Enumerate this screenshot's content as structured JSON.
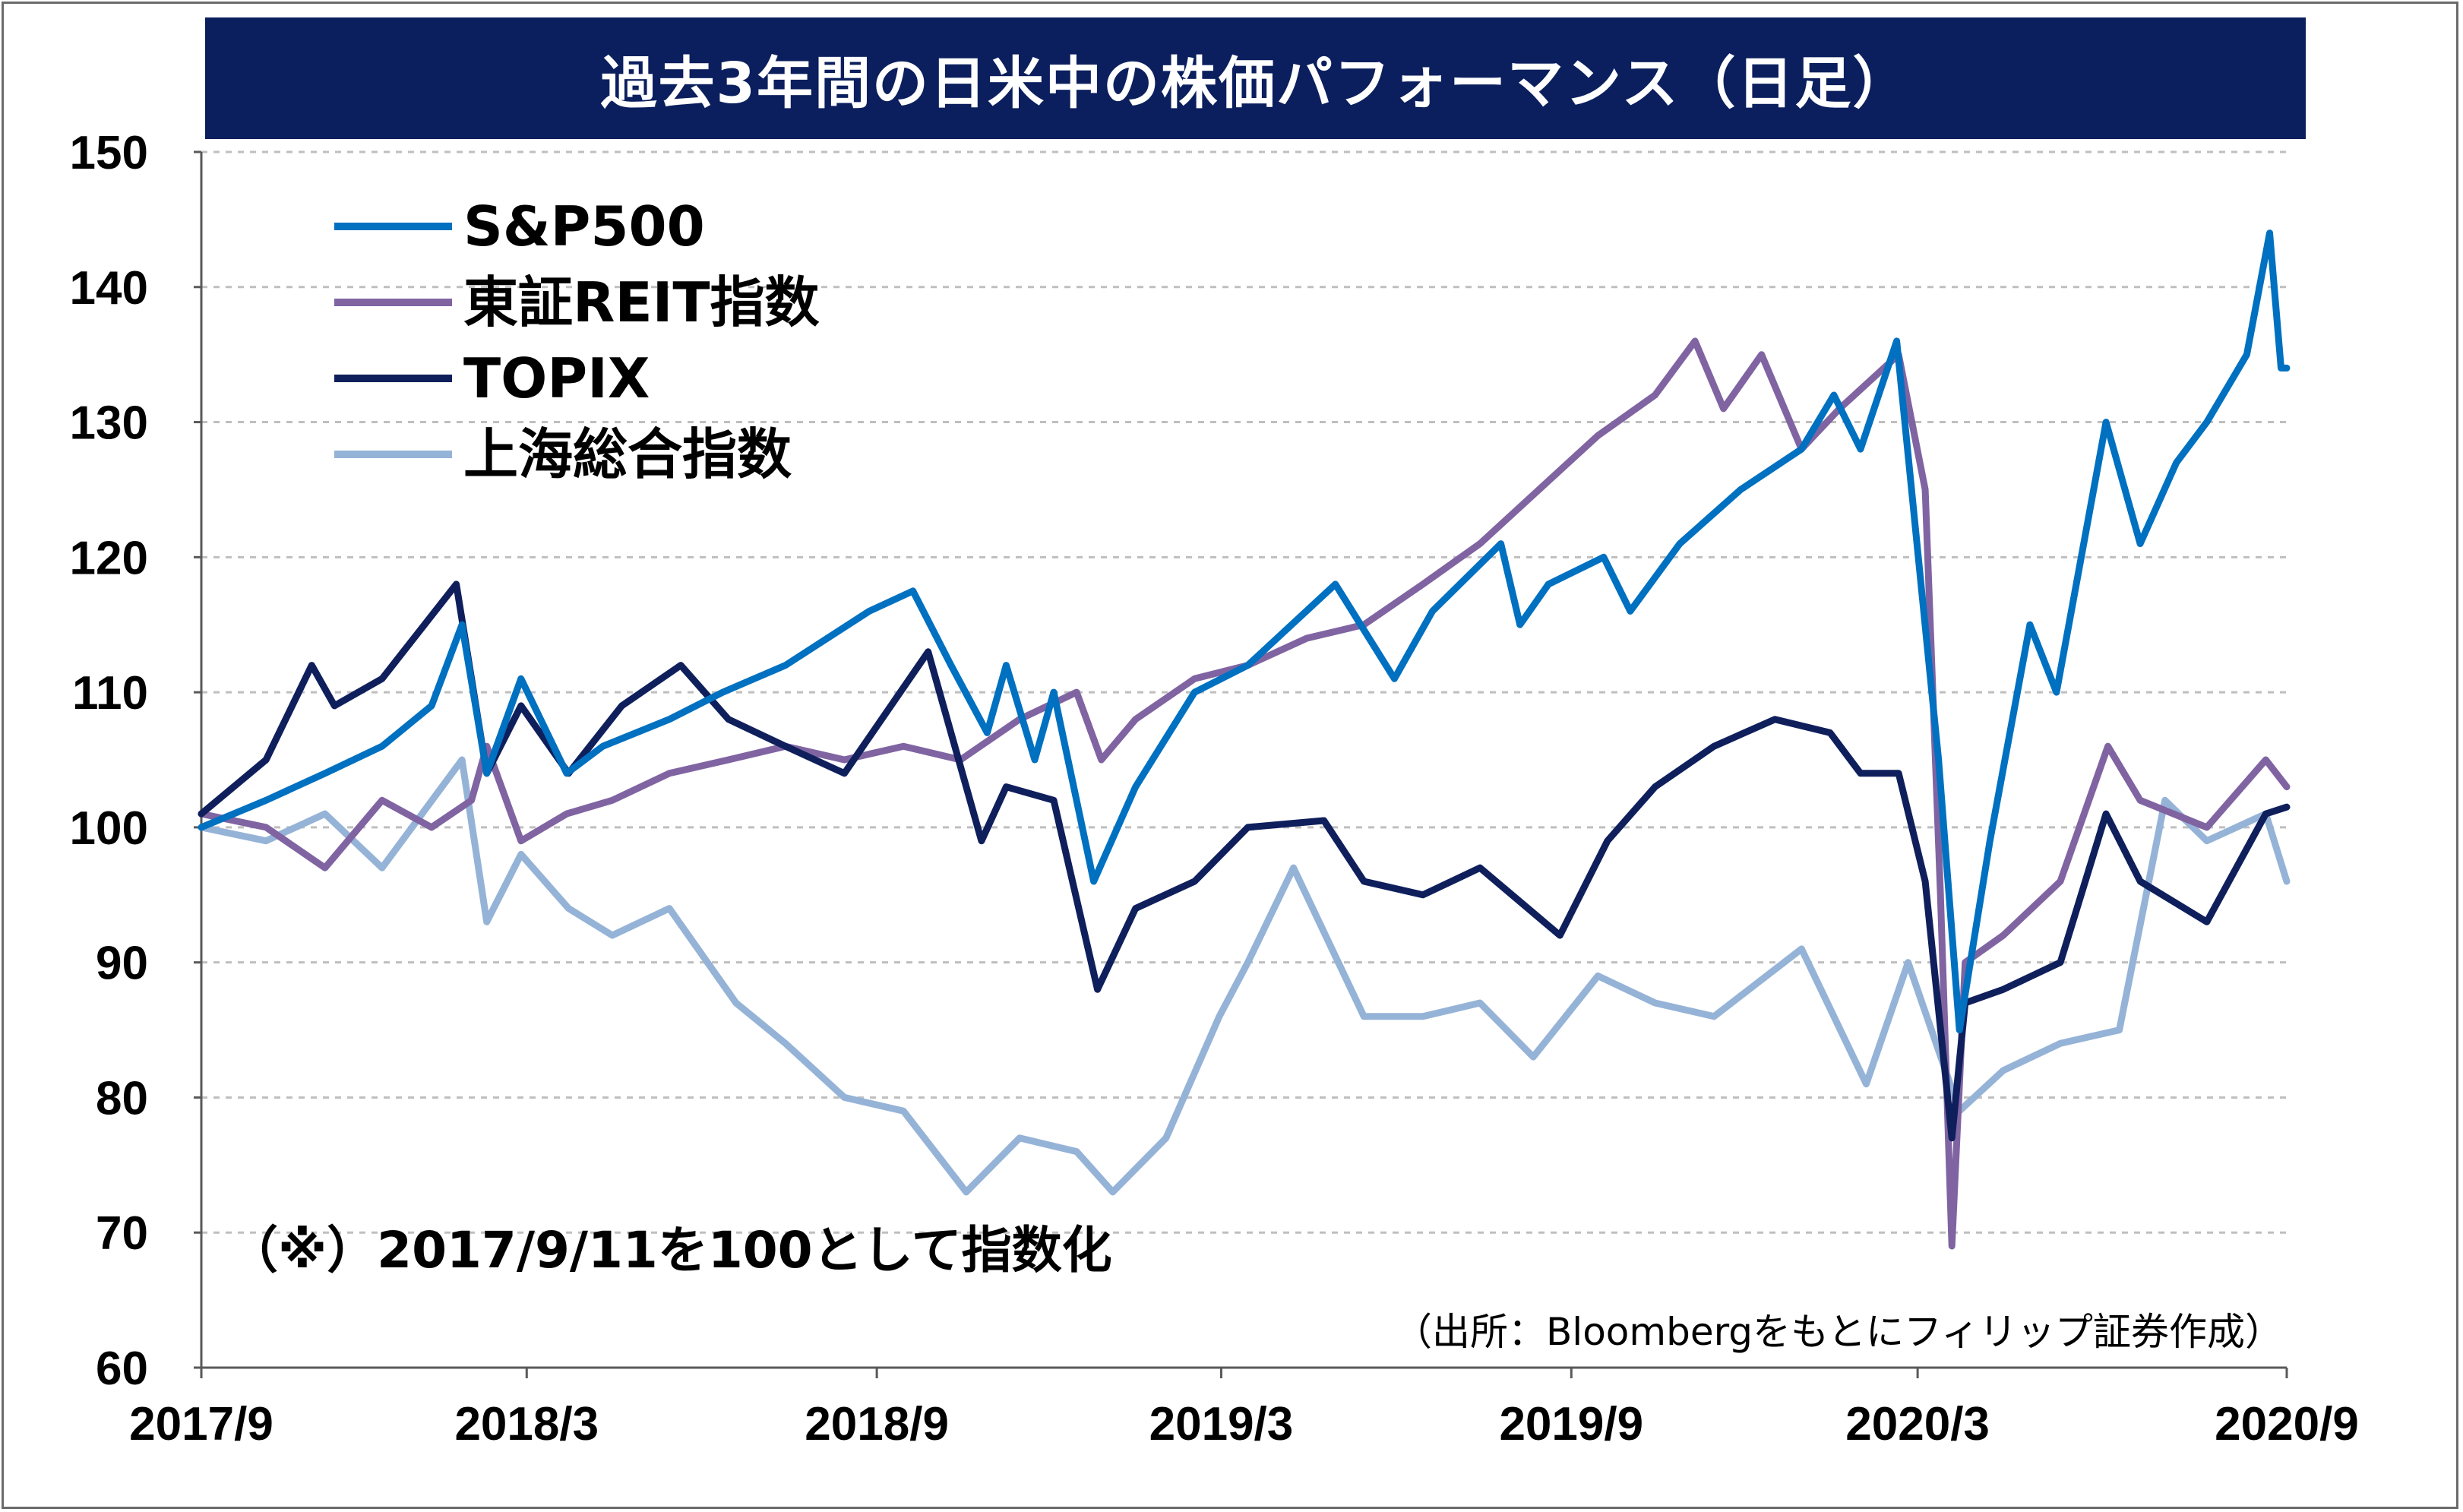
{
  "chart_data": {
    "type": "line",
    "title": "過去3年間の日米中の株価パフォーマンス（日足）",
    "note": "（※）2017/9/11を100として指数化",
    "source": "（出所：Bloombergをもとにフィリップ証券作成）",
    "ylim": [
      60,
      150
    ],
    "y_ticks": [
      "150",
      "140",
      "130",
      "120",
      "110",
      "100",
      "90",
      "80",
      "70",
      "60"
    ],
    "x_ticks": [
      "2017/9",
      "2018/3",
      "2018/9",
      "2019/3",
      "2019/9",
      "2020/3",
      "2020/9"
    ],
    "xlim": [
      "2017-09-11",
      "2020-09-11"
    ],
    "grid": "horizontal dashed",
    "legend_position": "top-left",
    "series": [
      {
        "name": "S&P500",
        "color": "#0070c0",
        "points": [
          [
            "2017-09-11",
            100
          ],
          [
            "2017-10-15",
            102
          ],
          [
            "2017-11-15",
            104
          ],
          [
            "2017-12-15",
            106
          ],
          [
            "2018-01-10",
            109
          ],
          [
            "2018-01-26",
            115
          ],
          [
            "2018-02-08",
            104
          ],
          [
            "2018-02-26",
            111
          ],
          [
            "2018-03-22",
            104
          ],
          [
            "2018-04-10",
            106
          ],
          [
            "2018-05-15",
            108
          ],
          [
            "2018-06-12",
            110
          ],
          [
            "2018-07-15",
            112
          ],
          [
            "2018-08-28",
            116
          ],
          [
            "2018-09-20",
            117.5
          ],
          [
            "2018-10-10",
            112
          ],
          [
            "2018-10-29",
            107
          ],
          [
            "2018-11-08",
            112
          ],
          [
            "2018-11-23",
            105
          ],
          [
            "2018-12-03",
            110
          ],
          [
            "2018-12-24",
            96
          ],
          [
            "2019-01-15",
            103
          ],
          [
            "2019-02-15",
            110
          ],
          [
            "2019-03-15",
            112
          ],
          [
            "2019-04-30",
            118
          ],
          [
            "2019-05-31",
            111
          ],
          [
            "2019-06-20",
            116
          ],
          [
            "2019-07-26",
            121
          ],
          [
            "2019-08-05",
            115
          ],
          [
            "2019-08-20",
            118
          ],
          [
            "2019-09-18",
            120
          ],
          [
            "2019-10-02",
            116
          ],
          [
            "2019-10-28",
            121
          ],
          [
            "2019-11-29",
            125
          ],
          [
            "2019-12-31",
            128
          ],
          [
            "2020-01-17",
            132
          ],
          [
            "2020-01-31",
            128
          ],
          [
            "2020-02-19",
            136
          ],
          [
            "2020-03-12",
            105
          ],
          [
            "2020-03-23",
            85
          ],
          [
            "2020-04-08",
            99
          ],
          [
            "2020-04-29",
            115
          ],
          [
            "2020-05-13",
            110
          ],
          [
            "2020-06-08",
            130
          ],
          [
            "2020-06-26",
            121
          ],
          [
            "2020-07-15",
            127
          ],
          [
            "2020-07-31",
            130
          ],
          [
            "2020-08-21",
            135
          ],
          [
            "2020-09-02",
            144
          ],
          [
            "2020-09-08",
            134
          ],
          [
            "2020-09-11",
            134
          ]
        ]
      },
      {
        "name": "東証REIT指数",
        "color": "#8064a2",
        "points": [
          [
            "2017-09-11",
            101
          ],
          [
            "2017-10-15",
            100
          ],
          [
            "2017-11-15",
            97
          ],
          [
            "2017-12-15",
            102
          ],
          [
            "2018-01-10",
            100
          ],
          [
            "2018-01-31",
            102
          ],
          [
            "2018-02-08",
            106
          ],
          [
            "2018-02-26",
            99
          ],
          [
            "2018-03-22",
            101
          ],
          [
            "2018-04-15",
            102
          ],
          [
            "2018-05-15",
            104
          ],
          [
            "2018-06-15",
            105
          ],
          [
            "2018-07-15",
            106
          ],
          [
            "2018-08-15",
            105
          ],
          [
            "2018-09-15",
            106
          ],
          [
            "2018-10-15",
            105
          ],
          [
            "2018-11-15",
            108
          ],
          [
            "2018-12-15",
            110
          ],
          [
            "2018-12-28",
            105
          ],
          [
            "2019-01-15",
            108
          ],
          [
            "2019-02-15",
            111
          ],
          [
            "2019-03-15",
            112
          ],
          [
            "2019-04-15",
            114
          ],
          [
            "2019-05-15",
            115
          ],
          [
            "2019-06-15",
            118
          ],
          [
            "2019-07-15",
            121
          ],
          [
            "2019-08-15",
            125
          ],
          [
            "2019-09-15",
            129
          ],
          [
            "2019-10-15",
            132
          ],
          [
            "2019-11-05",
            136
          ],
          [
            "2019-11-20",
            131
          ],
          [
            "2019-12-10",
            135
          ],
          [
            "2019-12-31",
            128
          ],
          [
            "2020-01-20",
            131
          ],
          [
            "2020-02-20",
            135
          ],
          [
            "2020-03-05",
            125
          ],
          [
            "2020-03-13",
            95
          ],
          [
            "2020-03-19",
            69
          ],
          [
            "2020-03-26",
            90
          ],
          [
            "2020-04-15",
            92
          ],
          [
            "2020-05-15",
            96
          ],
          [
            "2020-06-09",
            106
          ],
          [
            "2020-06-26",
            102
          ],
          [
            "2020-07-31",
            100
          ],
          [
            "2020-08-31",
            105
          ],
          [
            "2020-09-11",
            103
          ]
        ]
      },
      {
        "name": "TOPIX",
        "color": "#0f1f5c",
        "points": [
          [
            "2017-09-11",
            101
          ],
          [
            "2017-10-15",
            105
          ],
          [
            "2017-11-08",
            112
          ],
          [
            "2017-11-20",
            109
          ],
          [
            "2017-12-15",
            111
          ],
          [
            "2018-01-23",
            118
          ],
          [
            "2018-02-08",
            104
          ],
          [
            "2018-02-26",
            109
          ],
          [
            "2018-03-23",
            104
          ],
          [
            "2018-04-20",
            109
          ],
          [
            "2018-05-21",
            112
          ],
          [
            "2018-06-15",
            108
          ],
          [
            "2018-07-15",
            106
          ],
          [
            "2018-08-15",
            104
          ],
          [
            "2018-09-28",
            113
          ],
          [
            "2018-10-26",
            99
          ],
          [
            "2018-11-08",
            103
          ],
          [
            "2018-12-03",
            102
          ],
          [
            "2018-12-26",
            88
          ],
          [
            "2019-01-15",
            94
          ],
          [
            "2019-02-15",
            96
          ],
          [
            "2019-03-15",
            100
          ],
          [
            "2019-04-24",
            100.5
          ],
          [
            "2019-05-15",
            96
          ],
          [
            "2019-06-15",
            95
          ],
          [
            "2019-07-15",
            97
          ],
          [
            "2019-08-26",
            92
          ],
          [
            "2019-09-20",
            99
          ],
          [
            "2019-10-15",
            103
          ],
          [
            "2019-11-15",
            106
          ],
          [
            "2019-12-17",
            108
          ],
          [
            "2020-01-15",
            107
          ],
          [
            "2020-01-31",
            104
          ],
          [
            "2020-02-20",
            104
          ],
          [
            "2020-03-05",
            96
          ],
          [
            "2020-03-19",
            77
          ],
          [
            "2020-03-26",
            87
          ],
          [
            "2020-04-15",
            88
          ],
          [
            "2020-05-15",
            90
          ],
          [
            "2020-06-08",
            101
          ],
          [
            "2020-06-26",
            96
          ],
          [
            "2020-07-31",
            93
          ],
          [
            "2020-08-31",
            101
          ],
          [
            "2020-09-11",
            101.5
          ]
        ]
      },
      {
        "name": "上海総合指数",
        "color": "#95b3d7",
        "points": [
          [
            "2017-09-11",
            100
          ],
          [
            "2017-10-15",
            99
          ],
          [
            "2017-11-15",
            101
          ],
          [
            "2017-12-15",
            97
          ],
          [
            "2018-01-26",
            105
          ],
          [
            "2018-02-08",
            93
          ],
          [
            "2018-02-26",
            98
          ],
          [
            "2018-03-23",
            94
          ],
          [
            "2018-04-15",
            92
          ],
          [
            "2018-05-15",
            94
          ],
          [
            "2018-06-19",
            87
          ],
          [
            "2018-07-15",
            84
          ],
          [
            "2018-08-15",
            80
          ],
          [
            "2018-09-15",
            79
          ],
          [
            "2018-10-18",
            73
          ],
          [
            "2018-11-15",
            77
          ],
          [
            "2018-12-15",
            76
          ],
          [
            "2019-01-03",
            73
          ],
          [
            "2019-01-31",
            77
          ],
          [
            "2019-02-28",
            86
          ],
          [
            "2019-03-15",
            90
          ],
          [
            "2019-04-08",
            97
          ],
          [
            "2019-05-15",
            86
          ],
          [
            "2019-06-15",
            86
          ],
          [
            "2019-07-15",
            87
          ],
          [
            "2019-08-12",
            83
          ],
          [
            "2019-09-15",
            89
          ],
          [
            "2019-10-15",
            87
          ],
          [
            "2019-11-15",
            86
          ],
          [
            "2019-12-31",
            91
          ],
          [
            "2020-02-03",
            81
          ],
          [
            "2020-02-25",
            90
          ],
          [
            "2020-03-23",
            79
          ],
          [
            "2020-04-15",
            82
          ],
          [
            "2020-05-15",
            84
          ],
          [
            "2020-06-15",
            85
          ],
          [
            "2020-07-09",
            102
          ],
          [
            "2020-07-31",
            99
          ],
          [
            "2020-08-31",
            101
          ],
          [
            "2020-09-11",
            96
          ]
        ]
      }
    ]
  }
}
